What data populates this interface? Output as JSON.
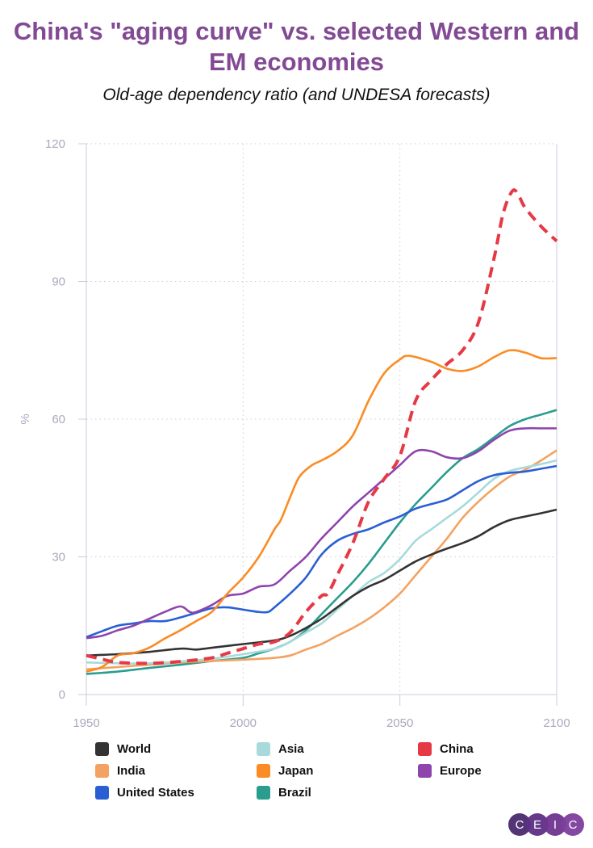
{
  "chart_data": {
    "type": "line",
    "title": "China's \"aging curve\" vs. selected Western and EM economies",
    "subtitle": "Old-age dependency ratio (and UNDESA forecasts)",
    "xlabel": "",
    "ylabel": "%",
    "xlim": [
      1950,
      2100
    ],
    "ylim": [
      0,
      120
    ],
    "xticks": [
      "1950",
      "2000",
      "2050",
      "2100"
    ],
    "yticks": [
      "0",
      "30",
      "60",
      "90",
      "120"
    ],
    "grid": true,
    "legend_placement": "bottom",
    "series": [
      {
        "name": "World",
        "color": "#333333",
        "dashed": false,
        "x": [
          1950,
          1960,
          1970,
          1980,
          1985,
          1990,
          2000,
          2010,
          2015,
          2020,
          2025,
          2030,
          2035,
          2040,
          2045,
          2050,
          2055,
          2060,
          2065,
          2070,
          2075,
          2080,
          2085,
          2090,
          2095,
          2100
        ],
        "y": [
          8.5,
          8.8,
          9.3,
          10,
          9.8,
          10.2,
          11,
          11.8,
          12.8,
          14.5,
          16.5,
          19,
          21.5,
          23.5,
          25,
          27,
          29,
          30.5,
          31.8,
          33,
          34.5,
          36.5,
          38,
          38.8,
          39.5,
          40.3
        ]
      },
      {
        "name": "Asia",
        "color": "#a8dadc",
        "dashed": false,
        "x": [
          1950,
          1960,
          1970,
          1980,
          1990,
          2000,
          2010,
          2015,
          2020,
          2025,
          2030,
          2035,
          2040,
          2045,
          2050,
          2055,
          2060,
          2065,
          2070,
          2075,
          2080,
          2085,
          2090,
          2095,
          2100
        ],
        "y": [
          7,
          6.8,
          6.8,
          7.2,
          7.8,
          8.8,
          10,
          11.5,
          13.5,
          15.5,
          18.5,
          21.5,
          24.5,
          26.5,
          29.5,
          33.5,
          36,
          38.5,
          41,
          44,
          47,
          48.7,
          49.5,
          50.2,
          51
        ]
      },
      {
        "name": "China",
        "color": "#e63946",
        "dashed": true,
        "x": [
          1950,
          1955,
          1960,
          1970,
          1980,
          1990,
          1995,
          2000,
          2005,
          2010,
          2015,
          2020,
          2025,
          2027,
          2030,
          2035,
          2040,
          2045,
          2050,
          2055,
          2060,
          2065,
          2070,
          2075,
          2080,
          2083,
          2086,
          2088,
          2090,
          2095,
          2100
        ],
        "y": [
          8.5,
          7.7,
          7,
          6.8,
          7.2,
          8,
          9,
          10,
          11,
          11.5,
          13.5,
          18,
          21.5,
          22,
          26,
          33,
          42,
          47,
          52,
          64,
          68.5,
          72,
          75,
          81,
          95,
          105,
          109.8,
          108.5,
          106,
          102,
          98.8
        ]
      },
      {
        "name": "India",
        "color": "#f4a261",
        "dashed": false,
        "x": [
          1950,
          1960,
          1970,
          1980,
          1990,
          2000,
          2010,
          2015,
          2020,
          2025,
          2030,
          2035,
          2040,
          2045,
          2050,
          2055,
          2060,
          2065,
          2070,
          2075,
          2080,
          2085,
          2090,
          2095,
          2100
        ],
        "y": [
          5.5,
          6,
          6.5,
          7,
          7.3,
          7.6,
          8,
          8.5,
          9.8,
          11,
          12.8,
          14.5,
          16.5,
          19,
          22,
          26,
          30,
          34,
          38.5,
          42,
          45,
          47.5,
          49,
          51,
          53.2
        ]
      },
      {
        "name": "Japan",
        "color": "#fb8b24",
        "dashed": false,
        "x": [
          1950,
          1955,
          1960,
          1965,
          1970,
          1975,
          1980,
          1985,
          1990,
          1995,
          2000,
          2005,
          2010,
          2012,
          2015,
          2018,
          2022,
          2025,
          2030,
          2035,
          2040,
          2045,
          2050,
          2053,
          2060,
          2065,
          2070,
          2075,
          2080,
          2085,
          2090,
          2095,
          2100
        ],
        "y": [
          5,
          6,
          8.5,
          9,
          10.2,
          12.2,
          14,
          16,
          18,
          22,
          25.5,
          30,
          36,
          38,
          43,
          47.5,
          50,
          51,
          53,
          56.5,
          64,
          70,
          73,
          73.8,
          72.5,
          71,
          70.5,
          71.5,
          73.5,
          75,
          74.5,
          73.3,
          73.3
        ]
      },
      {
        "name": "Europe",
        "color": "#8e44ad",
        "dashed": false,
        "x": [
          1950,
          1955,
          1960,
          1965,
          1970,
          1975,
          1980,
          1983,
          1985,
          1990,
          1995,
          2000,
          2005,
          2010,
          2015,
          2020,
          2025,
          2030,
          2035,
          2040,
          2045,
          2050,
          2055,
          2060,
          2065,
          2070,
          2075,
          2080,
          2085,
          2090,
          2095,
          2100
        ],
        "y": [
          12.3,
          12.8,
          14,
          15,
          16.5,
          18,
          19.2,
          18,
          18,
          19.5,
          21.5,
          22,
          23.5,
          24,
          27,
          30,
          34,
          37.5,
          41,
          44,
          47,
          50,
          53,
          53,
          51.7,
          51.5,
          53,
          55.5,
          57.5,
          58,
          58,
          58
        ]
      },
      {
        "name": "United States",
        "color": "#2a5fd4",
        "dashed": false,
        "x": [
          1950,
          1955,
          1960,
          1965,
          1970,
          1975,
          1980,
          1985,
          1990,
          1995,
          2000,
          2005,
          2008,
          2010,
          2015,
          2020,
          2025,
          2030,
          2035,
          2040,
          2045,
          2050,
          2055,
          2060,
          2065,
          2070,
          2075,
          2080,
          2085,
          2090,
          2095,
          2100
        ],
        "y": [
          12.5,
          13.8,
          15,
          15.5,
          16,
          16,
          16.8,
          17.8,
          18.8,
          19,
          18.5,
          18,
          18,
          19,
          22,
          25.5,
          30.5,
          33.5,
          35,
          36,
          37.5,
          38.8,
          40.5,
          41.5,
          42.5,
          44.5,
          46.5,
          47.8,
          48.3,
          48.6,
          49.2,
          49.8
        ]
      },
      {
        "name": "Brazil",
        "color": "#2a9d8f",
        "dashed": false,
        "x": [
          1950,
          1960,
          1970,
          1980,
          1990,
          2000,
          2005,
          2010,
          2015,
          2020,
          2025,
          2030,
          2035,
          2040,
          2045,
          2050,
          2055,
          2060,
          2065,
          2070,
          2075,
          2080,
          2085,
          2090,
          2095,
          2100
        ],
        "y": [
          4.5,
          5,
          5.8,
          6.5,
          7.3,
          8,
          9,
          10,
          11.5,
          14,
          17.5,
          21,
          24.5,
          28.5,
          33,
          37.5,
          41.5,
          45,
          48.5,
          51.5,
          53.5,
          56,
          58.5,
          60,
          61,
          62
        ]
      }
    ]
  },
  "legend_order": [
    "World",
    "Asia",
    "China",
    "India",
    "Japan",
    "Europe",
    "United States",
    "Brazil"
  ],
  "logo": {
    "letters": [
      "C",
      "E",
      "I",
      "C"
    ],
    "colors": [
      "#4a2a6e",
      "#5e3085",
      "#6f3590",
      "#7e3f9e"
    ]
  }
}
